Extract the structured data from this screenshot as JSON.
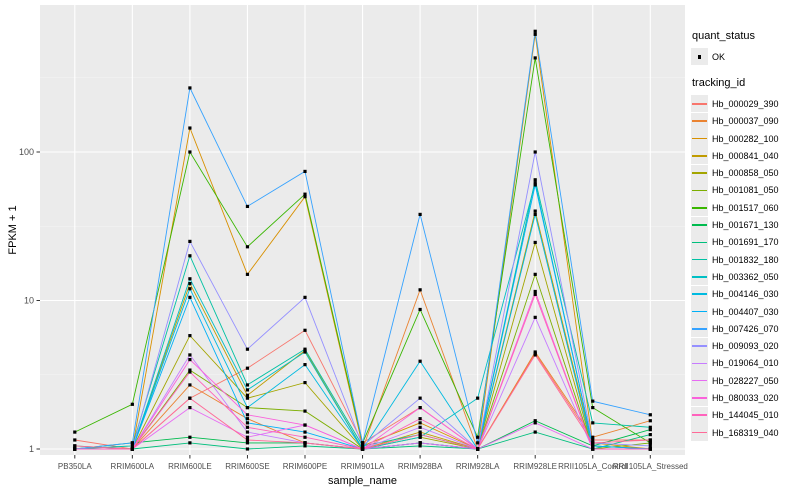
{
  "chart_data": {
    "type": "line",
    "title": "",
    "xlabel": "sample_name",
    "ylabel": "FPKM + 1",
    "y_scale": "log10",
    "ylim": [
      0.95,
      980
    ],
    "y_ticks": [
      1,
      10,
      100
    ],
    "y_minor_ticks": [
      3.1623,
      31.623,
      316.23
    ],
    "grid": "on",
    "legend_position": "right",
    "point_shape": "filled-square",
    "point_color": "#000000",
    "panel_bg": "#EBEBEB",
    "categories": [
      "PB350LA",
      "RRIM600LA",
      "RRIM600LE",
      "RRIM600SE",
      "RRIM600PE",
      "RRIM901LA",
      "RRIM928BA",
      "RRIM928LA",
      "RRIM928LE",
      "RRII105LA_Control",
      "RRII105LA_Stressed"
    ],
    "series": [
      {
        "name": "Hb_000029_390",
        "color": "#F8766D",
        "values": [
          1.15,
          1.0,
          2.2,
          3.5,
          6.3,
          1.1,
          1.9,
          1.0,
          4.4,
          1.15,
          1.15
        ]
      },
      {
        "name": "Hb_000037_090",
        "color": "#EA8331",
        "values": [
          1.0,
          1.0,
          2.7,
          1.6,
          1.1,
          1.0,
          11.8,
          1.0,
          4.5,
          1.2,
          1.55
        ]
      },
      {
        "name": "Hb_000282_100",
        "color": "#D89000",
        "values": [
          1.0,
          1.0,
          145,
          15,
          50,
          1.05,
          1.5,
          1.0,
          620,
          1.1,
          1.0
        ]
      },
      {
        "name": "Hb_000841_040",
        "color": "#C09B00",
        "values": [
          1.0,
          1.0,
          13,
          2.3,
          4.6,
          1.0,
          1.3,
          1.0,
          40,
          1.05,
          1.0
        ]
      },
      {
        "name": "Hb_000858_050",
        "color": "#A3A500",
        "values": [
          1.0,
          1.0,
          5.8,
          2.2,
          2.8,
          1.0,
          1.2,
          1.0,
          24.6,
          1.0,
          1.0
        ]
      },
      {
        "name": "Hb_001081_050",
        "color": "#7CAE00",
        "values": [
          1.0,
          1.0,
          3.4,
          1.9,
          1.8,
          1.0,
          1.1,
          1.0,
          15,
          1.0,
          1.1
        ]
      },
      {
        "name": "Hb_001517_060",
        "color": "#39B600",
        "values": [
          1.3,
          2.0,
          100,
          23,
          52,
          1.1,
          8.7,
          1.2,
          430,
          1.9,
          1.1
        ]
      },
      {
        "name": "Hb_001671_130",
        "color": "#00BB4E",
        "values": [
          1.0,
          1.1,
          1.2,
          1.1,
          1.1,
          1.0,
          1.1,
          1.0,
          1.55,
          1.05,
          1.35
        ]
      },
      {
        "name": "Hb_001691_170",
        "color": "#00BF7D",
        "values": [
          1.05,
          1.0,
          1.1,
          1.0,
          1.05,
          1.0,
          1.05,
          1.0,
          1.3,
          1.0,
          1.25
        ]
      },
      {
        "name": "Hb_001832_180",
        "color": "#00C1A3",
        "values": [
          1.0,
          1.05,
          20,
          2.7,
          4.7,
          1.05,
          1.25,
          1.0,
          65,
          1.5,
          1.4
        ]
      },
      {
        "name": "Hb_003362_050",
        "color": "#00BFC4",
        "values": [
          1.0,
          1.0,
          14,
          2.5,
          4.5,
          1.0,
          1.2,
          2.2,
          62,
          1.05,
          1.0
        ]
      },
      {
        "name": "Hb_004146_030",
        "color": "#00BAE0",
        "values": [
          1.0,
          1.0,
          12,
          1.9,
          3.7,
          1.0,
          3.9,
          1.0,
          38,
          1.0,
          1.0
        ]
      },
      {
        "name": "Hb_004407_030",
        "color": "#00B0F6",
        "values": [
          1.0,
          1.0,
          10.5,
          1.5,
          1.3,
          1.0,
          1.1,
          1.0,
          60,
          1.05,
          1.0
        ]
      },
      {
        "name": "Hb_007426_070",
        "color": "#35A2FF",
        "values": [
          1.0,
          1.1,
          270,
          43,
          74,
          1.1,
          38,
          1.1,
          650,
          2.1,
          1.7
        ]
      },
      {
        "name": "Hb_009093_020",
        "color": "#9590FF",
        "values": [
          1.0,
          1.0,
          25,
          4.7,
          10.5,
          1.05,
          2.2,
          1.0,
          100,
          1.1,
          1.05
        ]
      },
      {
        "name": "Hb_019064_010",
        "color": "#C77CFF",
        "values": [
          1.0,
          1.0,
          4.3,
          1.3,
          1.1,
          1.0,
          1.4,
          1.0,
          7.7,
          1.0,
          1.0
        ]
      },
      {
        "name": "Hb_028227_050",
        "color": "#E76BF3",
        "values": [
          1.0,
          1.0,
          1.9,
          1.2,
          1.45,
          1.0,
          1.1,
          1.0,
          1.5,
          1.0,
          1.0
        ]
      },
      {
        "name": "Hb_080033_020",
        "color": "#FA62DB",
        "values": [
          1.0,
          1.0,
          4.0,
          1.7,
          1.45,
          1.0,
          1.9,
          1.0,
          11.5,
          1.0,
          1.0
        ]
      },
      {
        "name": "Hb_144045_010",
        "color": "#FF62BC",
        "values": [
          1.0,
          1.0,
          3.3,
          1.4,
          1.2,
          1.0,
          1.6,
          1.0,
          11,
          1.0,
          1.0
        ]
      },
      {
        "name": "Hb_168319_040",
        "color": "#FF6A98",
        "values": [
          1.05,
          1.0,
          2.2,
          1.15,
          1.1,
          1.0,
          1.25,
          1.0,
          4.3,
          1.1,
          1.15
        ]
      }
    ]
  },
  "legend": {
    "quant_status_title": "quant_status",
    "quant_status_items": [
      {
        "label": "OK"
      }
    ],
    "tracking_id_title": "tracking_id"
  }
}
